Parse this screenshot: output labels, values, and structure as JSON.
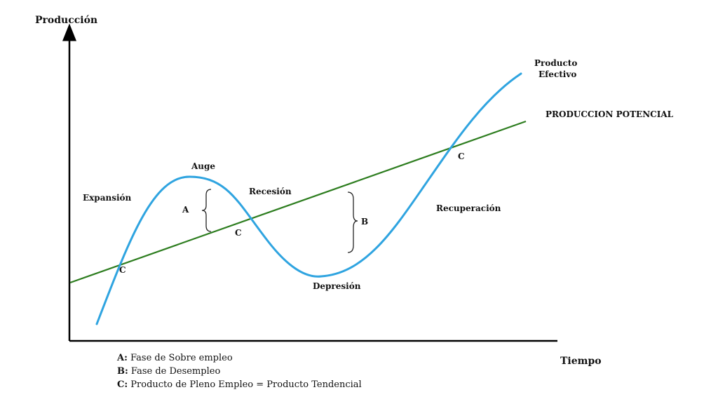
{
  "axes": {
    "y_label": "Producción",
    "x_label": "Tiempo"
  },
  "curves": {
    "actual_label_line1": "Producto",
    "actual_label_line2": "Efectivo",
    "potential_label": "PRODUCCION POTENCIAL",
    "actual_color": "#2fa4e0",
    "potential_color": "#2d7d1f",
    "axis_color": "#000000"
  },
  "phases": {
    "expansion": "Expansión",
    "peak": "Auge",
    "recession": "Recesión",
    "trough": "Depresión",
    "recovery": "Recuperación"
  },
  "markers": {
    "a": "A",
    "b": "B",
    "c": "C"
  },
  "legend": {
    "a_key": "A:",
    "a_text": " Fase de Sobre empleo",
    "b_key": "B:",
    "b_text": " Fase de Desempleo",
    "c_key": "C:",
    "c_text": " Producto de Pleno Empleo = Producto Tendencial"
  }
}
